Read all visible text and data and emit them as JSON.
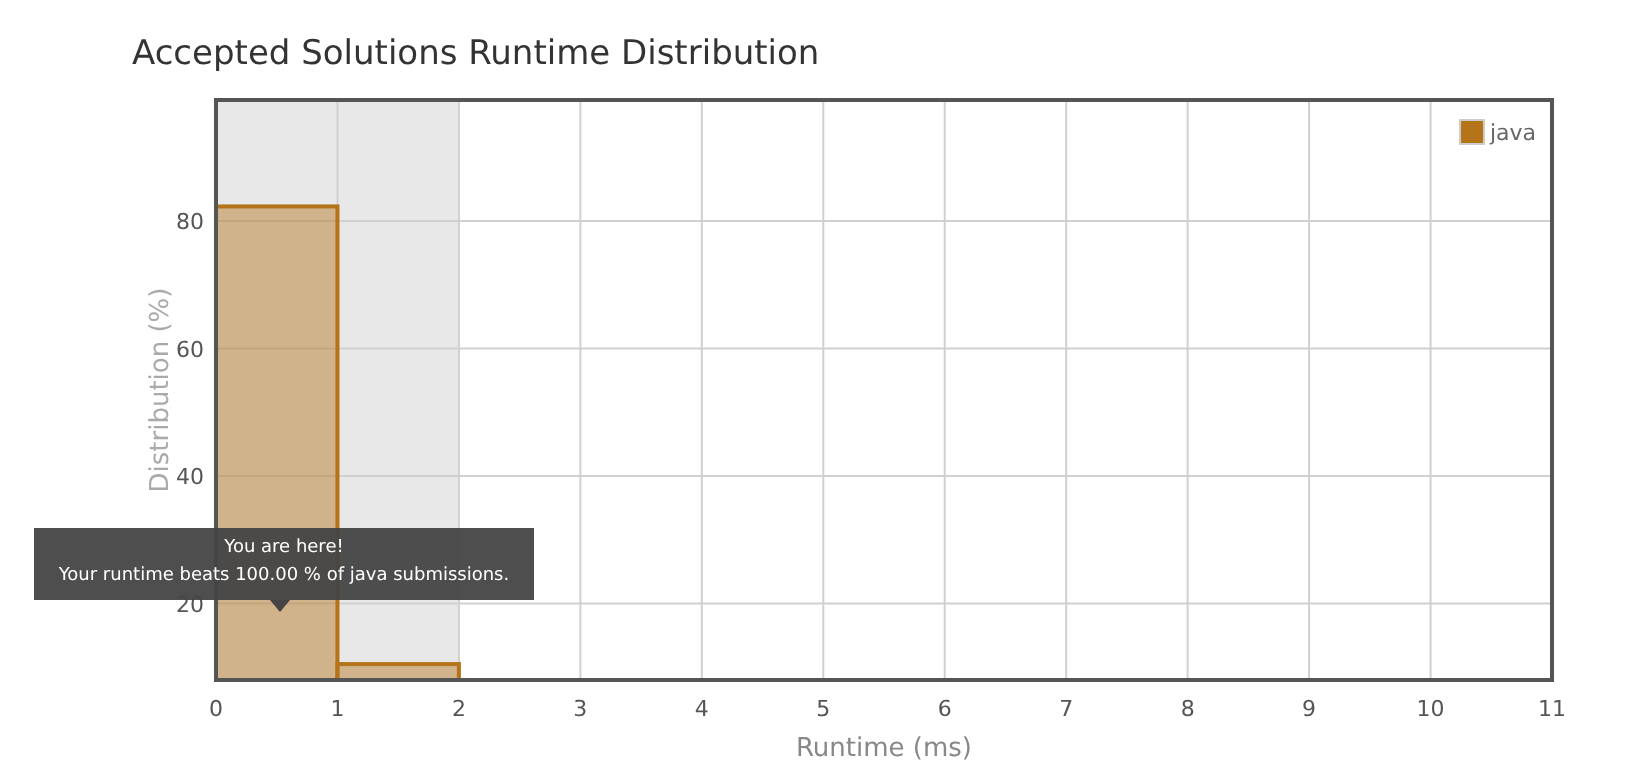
{
  "chart_data": {
    "type": "histogram",
    "title": "Accepted Solutions Runtime Distribution",
    "xlabel": "Runtime (ms)",
    "ylabel": "Distribution (%)",
    "bins": [
      0,
      1,
      2
    ],
    "series": [
      {
        "name": "java",
        "color": "#b5731a",
        "values": [
          82.3,
          10.5
        ]
      }
    ],
    "xlim": [
      0,
      11
    ],
    "xticks": [
      0,
      1,
      2,
      3,
      4,
      5,
      6,
      7,
      8,
      9,
      10,
      11
    ],
    "ylim": [
      8,
      99
    ],
    "yticks": [
      20,
      40,
      60,
      80
    ],
    "grid": true,
    "legend": "top right",
    "bands": [
      {
        "axis": "x",
        "from": 0,
        "to": 2,
        "color": "#e8e8e8"
      }
    ],
    "annotations": [
      "You are here!\nYour runtime beats 100.00 % of java submissions."
    ]
  }
}
